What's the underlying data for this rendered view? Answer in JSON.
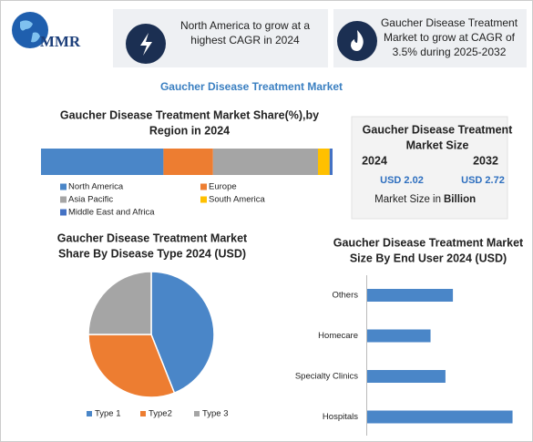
{
  "header": {
    "logo": "MMR"
  },
  "cards": [
    {
      "lines": [
        "North America to grow at a",
        "highest CAGR in 2024"
      ]
    },
    {
      "lines": [
        "Gaucher Disease Treatment",
        "Market to grow at CAGR of",
        "3.5% during 2025-2032"
      ]
    }
  ],
  "main_title": "Gaucher Disease Treatment Market",
  "market_size": {
    "title_lines": [
      "Gaucher Disease Treatment",
      "Market Size"
    ],
    "years": [
      "2024",
      "2032"
    ],
    "value_labels": [
      "USD 2.02",
      "USD 2.72"
    ],
    "note": "Market Size in",
    "unit": "Billion"
  },
  "chart_data": [
    {
      "type": "stacked_bar",
      "title_lines": [
        "Gaucher Disease Treatment Market Share(%),by",
        "Region in 2024"
      ],
      "xlim": [
        0,
        100
      ],
      "series": [
        {
          "name": "North America",
          "color": "#4a86c8",
          "values": [
            42
          ]
        },
        {
          "name": "Europe",
          "color": "#ed7d31",
          "values": [
            17
          ]
        },
        {
          "name": "Asia Pacific",
          "color": "#a5a5a5",
          "values": [
            36
          ]
        },
        {
          "name": "South America",
          "color": "#ffc000",
          "values": [
            4
          ]
        },
        {
          "name": "Middle East and Africa",
          "color": "#4472c4",
          "values": [
            1
          ]
        }
      ]
    },
    {
      "type": "pie",
      "title_lines": [
        "Gaucher Disease Treatment Market",
        "Share By Disease Type   2024  (USD)"
      ],
      "categories": [
        "Type 1",
        "Type2",
        "Type 3"
      ],
      "values": [
        44,
        31,
        25
      ],
      "colors": [
        "#4a86c8",
        "#ed7d31",
        "#a5a5a5"
      ]
    },
    {
      "type": "hbar",
      "title_lines": [
        "Gaucher Disease Treatment Market",
        "Size By End User 2024  (USD)"
      ],
      "categories": [
        "Others",
        "Homecare",
        "Specialty Clinics",
        "Hospitals"
      ],
      "values": [
        23,
        17,
        21,
        39
      ],
      "xlim": [
        0,
        44
      ],
      "color": "#4a86c8"
    }
  ]
}
